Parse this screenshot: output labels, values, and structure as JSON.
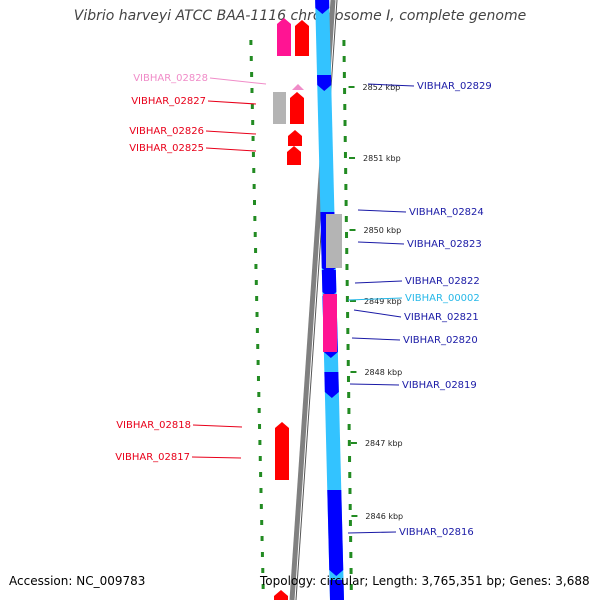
{
  "header": {
    "title": "Vibrio harveyi ATCC BAA-1116 chromosome I, complete genome"
  },
  "footer": {
    "accession": "Accession: NC_009783",
    "summary": "Topology: circular; Length: 3,765,351 bp; Genes: 3,688"
  },
  "colors": {
    "reverse_label": "#e8001a",
    "reverse_label_light": "#f08cc8",
    "forward_label": "#1a1aa6",
    "forward_label_light": "#26b8e8",
    "cds_red": "#ff0000",
    "cds_magenta": "#ff1493",
    "cds_grey": "#b4b4b4",
    "cds_blue": "#0000ff",
    "cds_lightblue": "#33c3ff",
    "backbone": "#808080",
    "tick": "#228b22"
  },
  "ticks": [
    "2852 kbp",
    "2851 kbp",
    "2850 kbp",
    "2849 kbp",
    "2848 kbp",
    "2847 kbp",
    "2846 kbp"
  ],
  "left_labels": [
    {
      "text": "VIBHAR_02828",
      "tone": "light"
    },
    {
      "text": "VIBHAR_02827",
      "tone": "normal"
    },
    {
      "text": "VIBHAR_02826",
      "tone": "normal"
    },
    {
      "text": "VIBHAR_02825",
      "tone": "normal"
    },
    {
      "text": "VIBHAR_02818",
      "tone": "normal"
    },
    {
      "text": "VIBHAR_02817",
      "tone": "normal"
    }
  ],
  "right_labels": [
    {
      "text": "VIBHAR_02829",
      "tone": "normal"
    },
    {
      "text": "VIBHAR_02824",
      "tone": "normal"
    },
    {
      "text": "VIBHAR_02823",
      "tone": "normal"
    },
    {
      "text": "VIBHAR_02822",
      "tone": "normal"
    },
    {
      "text": "VIBHAR_00002",
      "tone": "light"
    },
    {
      "text": "VIBHAR_02821",
      "tone": "normal"
    },
    {
      "text": "VIBHAR_02820",
      "tone": "normal"
    },
    {
      "text": "VIBHAR_02819",
      "tone": "normal"
    },
    {
      "text": "VIBHAR_02816",
      "tone": "normal"
    }
  ]
}
